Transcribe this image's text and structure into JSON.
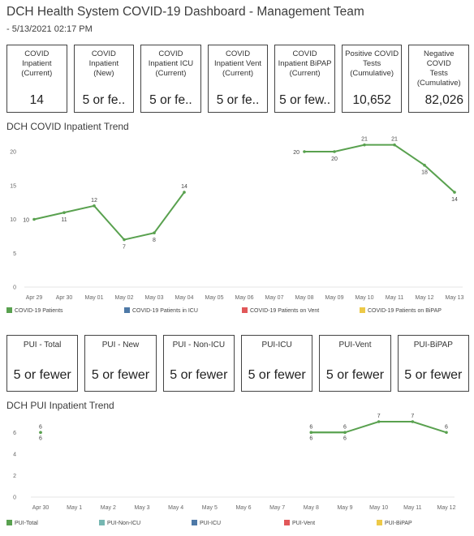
{
  "header": {
    "title": "DCH Health System COVID-19 Dashboard - Management Team",
    "subtitle": "- 5/13/2021 02:17 PM"
  },
  "kpis": [
    {
      "label": "COVID\nInpatient\n(Current)",
      "value": "14"
    },
    {
      "label": "COVID\nInpatient\n(New)",
      "value": "5 or fe.."
    },
    {
      "label": "COVID\nInpatient ICU\n(Current)",
      "value": "5 or fe.."
    },
    {
      "label": "COVID\nInpatient Vent\n(Current)",
      "value": "5 or fe.."
    },
    {
      "label": "COVID\nInpatient BiPAP\n(Current)",
      "value": "5 or few.."
    },
    {
      "label": "Positive COVID\nTests\n(Cumulative)",
      "value": "10,652"
    },
    {
      "label": "Negative COVID\nTests\n(Cumulative)",
      "value": "82,026"
    }
  ],
  "inpatient_section_title": "DCH COVID Inpatient Trend",
  "pui_section_title": "DCH PUI Inpatient Trend",
  "pui_kpis": [
    {
      "label": "PUI - Total",
      "value": "5 or fewer"
    },
    {
      "label": "PUI - New",
      "value": "5 or fewer"
    },
    {
      "label": "PUI - Non-ICU",
      "value": "5 or fewer"
    },
    {
      "label": "PUI-ICU",
      "value": "5 or fewer"
    },
    {
      "label": "PUI-Vent",
      "value": "5 or fewer"
    },
    {
      "label": "PUI-BiPAP",
      "value": "5 or fewer"
    }
  ],
  "chart_data": [
    {
      "type": "line",
      "title": "DCH COVID Inpatient Trend",
      "categories": [
        "Apr 29",
        "Apr 30",
        "May 01",
        "May 02",
        "May 03",
        "May 04",
        "May 05",
        "May 06",
        "May 07",
        "May 08",
        "May 09",
        "May 10",
        "May 11",
        "May 12",
        "May 13"
      ],
      "ylim": [
        0,
        20
      ],
      "yticks": [
        0,
        5,
        10,
        15,
        20
      ],
      "grid": false,
      "legend_position": "bottom",
      "legend": [
        "COVID-19 Patients",
        "COVID-19 Patients in ICU",
        "COVID-19 Patients on Vent",
        "COVID-19 Patients on BiPAP"
      ],
      "legend_colors": [
        "#59a14f",
        "#4e79a7",
        "#e15759",
        "#edc948"
      ],
      "series": [
        {
          "name": "COVID-19 Patients",
          "color": "#59a14f",
          "values": [
            10,
            11,
            12,
            7,
            8,
            14,
            null,
            null,
            null,
            20,
            20,
            21,
            21,
            18,
            14
          ],
          "labels": [
            "10",
            "11",
            "12",
            "7",
            "8",
            "14",
            "",
            "",
            "",
            "20",
            "20",
            "21",
            "21",
            "18",
            "14"
          ]
        }
      ]
    },
    {
      "type": "line",
      "title": "DCH PUI Inpatient Trend",
      "categories": [
        "Apr 30",
        "May 1",
        "May 2",
        "May 3",
        "May 4",
        "May 5",
        "May 6",
        "May 7",
        "May 8",
        "May 9",
        "May 10",
        "May 11",
        "May 12"
      ],
      "ylim": [
        0,
        7
      ],
      "yticks": [
        0,
        2,
        4,
        6
      ],
      "grid": false,
      "legend_position": "bottom",
      "legend": [
        "PUI-Total",
        "PUI-Non-ICU",
        "PUI-ICU",
        "PUI-Vent",
        "PUI-BiPAP"
      ],
      "legend_colors": [
        "#59a14f",
        "#76b7b2",
        "#4e79a7",
        "#e15759",
        "#edc948"
      ],
      "series": [
        {
          "name": "PUI-Total",
          "color": "#59a14f",
          "values": [
            6,
            null,
            null,
            null,
            null,
            null,
            null,
            null,
            6,
            6,
            7,
            7,
            6
          ],
          "labels": [
            "6",
            "",
            "",
            "",
            "",
            "",
            "",
            "",
            "6",
            "6",
            "7",
            "7",
            "6"
          ]
        },
        {
          "name": "PUI-Non-ICU",
          "color": "#59a14f",
          "values": [
            6,
            null,
            null,
            null,
            null,
            null,
            null,
            null,
            6,
            6,
            null,
            null,
            null
          ],
          "labels": [
            "6",
            "",
            "",
            "",
            "",
            "",
            "",
            "",
            "6",
            "6",
            "",
            "",
            ""
          ]
        }
      ]
    }
  ]
}
